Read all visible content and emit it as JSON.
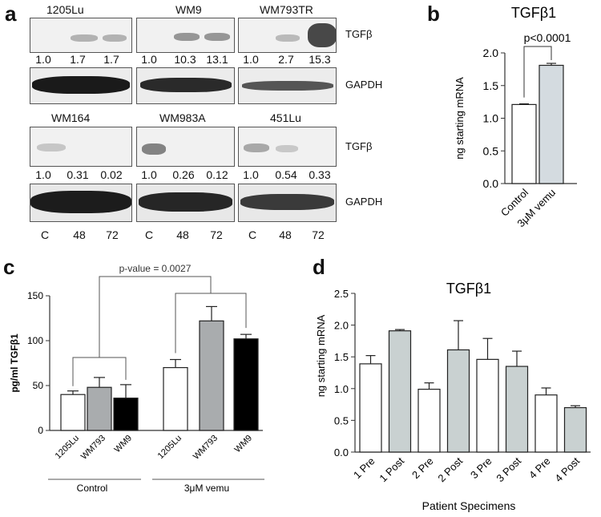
{
  "panel_a": {
    "letter": "a",
    "top_row": {
      "cell_lines": [
        "1205Lu",
        "WM9",
        "WM793TR"
      ],
      "ratios": [
        [
          "1.0",
          "1.7",
          "1.7"
        ],
        [
          "1.0",
          "10.3",
          "13.1"
        ],
        [
          "1.0",
          "2.7",
          "15.3"
        ]
      ],
      "tgfb_label": "TGFβ",
      "gapdh_label": "GAPDH"
    },
    "bottom_row": {
      "cell_lines": [
        "WM164",
        "WM983A",
        "451Lu"
      ],
      "ratios": [
        [
          "1.0",
          "0.31",
          "0.02"
        ],
        [
          "1.0",
          "0.26",
          "0.12"
        ],
        [
          "1.0",
          "0.54",
          "0.33"
        ]
      ],
      "tgfb_label": "TGFβ",
      "gapdh_label": "GAPDH"
    },
    "lane_labels": [
      "C",
      "48",
      "72"
    ]
  },
  "chart_data": [
    {
      "id": "b",
      "type": "bar",
      "title": "TGFβ1",
      "categories": [
        "Control",
        "3μM vemu"
      ],
      "values": [
        1.21,
        1.81
      ],
      "errors": [
        0.01,
        0.03
      ],
      "colors": [
        "#ffffff",
        "#d4dbe0"
      ],
      "ylabel": "ng starting mRNA",
      "ylim": [
        0,
        2.0
      ],
      "yticks": [
        "0.0",
        "0.5",
        "1.0",
        "1.5",
        "2.0"
      ],
      "annotation": "p<0.0001"
    },
    {
      "id": "c",
      "type": "bar",
      "title": "",
      "ylabel": "pg/ml TGFβ1",
      "ylim": [
        0,
        150
      ],
      "yticks": [
        "0",
        "50",
        "100",
        "150"
      ],
      "categories": [
        "1205Lu",
        "WM793",
        "WM9",
        "1205Lu",
        "WM793",
        "WM9"
      ],
      "values": [
        40,
        48,
        36,
        70,
        122,
        102
      ],
      "errors": [
        4,
        11,
        15,
        9,
        16,
        5
      ],
      "colors": [
        "#ffffff",
        "#a9acae",
        "#000000",
        "#ffffff",
        "#a9acae",
        "#000000"
      ],
      "groups": [
        "Control",
        "3μM vemu"
      ],
      "annotation": "p-value = 0.0027"
    },
    {
      "id": "d",
      "type": "bar",
      "title": "TGFβ1",
      "categories": [
        "1 Pre",
        "1 Post",
        "2 Pre",
        "2 Post",
        "3 Pre",
        "3 Post",
        "4 Pre",
        "4 Post"
      ],
      "values": [
        1.39,
        1.91,
        0.99,
        1.61,
        1.46,
        1.35,
        0.9,
        0.7
      ],
      "errors": [
        0.13,
        0.02,
        0.1,
        0.46,
        0.33,
        0.24,
        0.11,
        0.03
      ],
      "colors": [
        "#ffffff",
        "#c9d1d1",
        "#ffffff",
        "#c9d1d1",
        "#ffffff",
        "#c9d1d1",
        "#ffffff",
        "#c9d1d1"
      ],
      "xlabel": "Patient Specimens",
      "ylabel": "ng starting mRNA",
      "ylim": [
        0,
        2.5
      ],
      "yticks": [
        "0.0",
        "0.5",
        "1.0",
        "1.5",
        "2.0",
        "2.5"
      ]
    }
  ],
  "panel_letters": {
    "b": "b",
    "c": "c",
    "d": "d"
  }
}
